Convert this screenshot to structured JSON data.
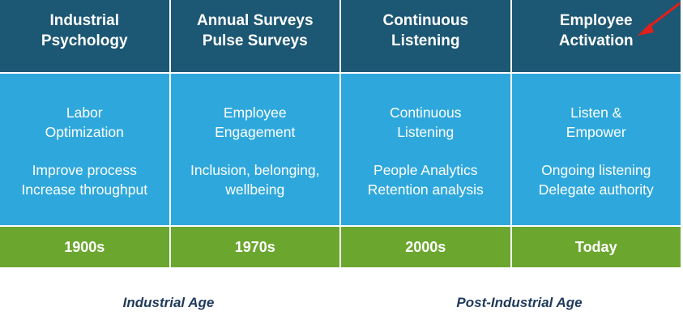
{
  "columns": [
    {
      "header": [
        "Industrial",
        "Psychology"
      ],
      "body": [
        [
          "Labor",
          "Optimization"
        ],
        [
          "Improve process",
          "Increase throughput"
        ]
      ],
      "era": "1900s"
    },
    {
      "header": [
        "Annual Surveys",
        "Pulse Surveys"
      ],
      "body": [
        [
          "Employee",
          "Engagement"
        ],
        [
          "Inclusion, belonging,",
          "wellbeing"
        ]
      ],
      "era": "1970s"
    },
    {
      "header": [
        "Continuous",
        "Listening"
      ],
      "body": [
        [
          "Continuous",
          "Listening"
        ],
        [
          "People Analytics",
          "Retention analysis"
        ]
      ],
      "era": "2000s"
    },
    {
      "header": [
        "Employee",
        "Activation"
      ],
      "body": [
        [
          "Listen &",
          "Empower"
        ],
        [
          "Ongoing listening",
          "Delegate authority"
        ]
      ],
      "era": "Today"
    }
  ],
  "ages": [
    "Industrial Age",
    "Post-Industrial Age"
  ]
}
